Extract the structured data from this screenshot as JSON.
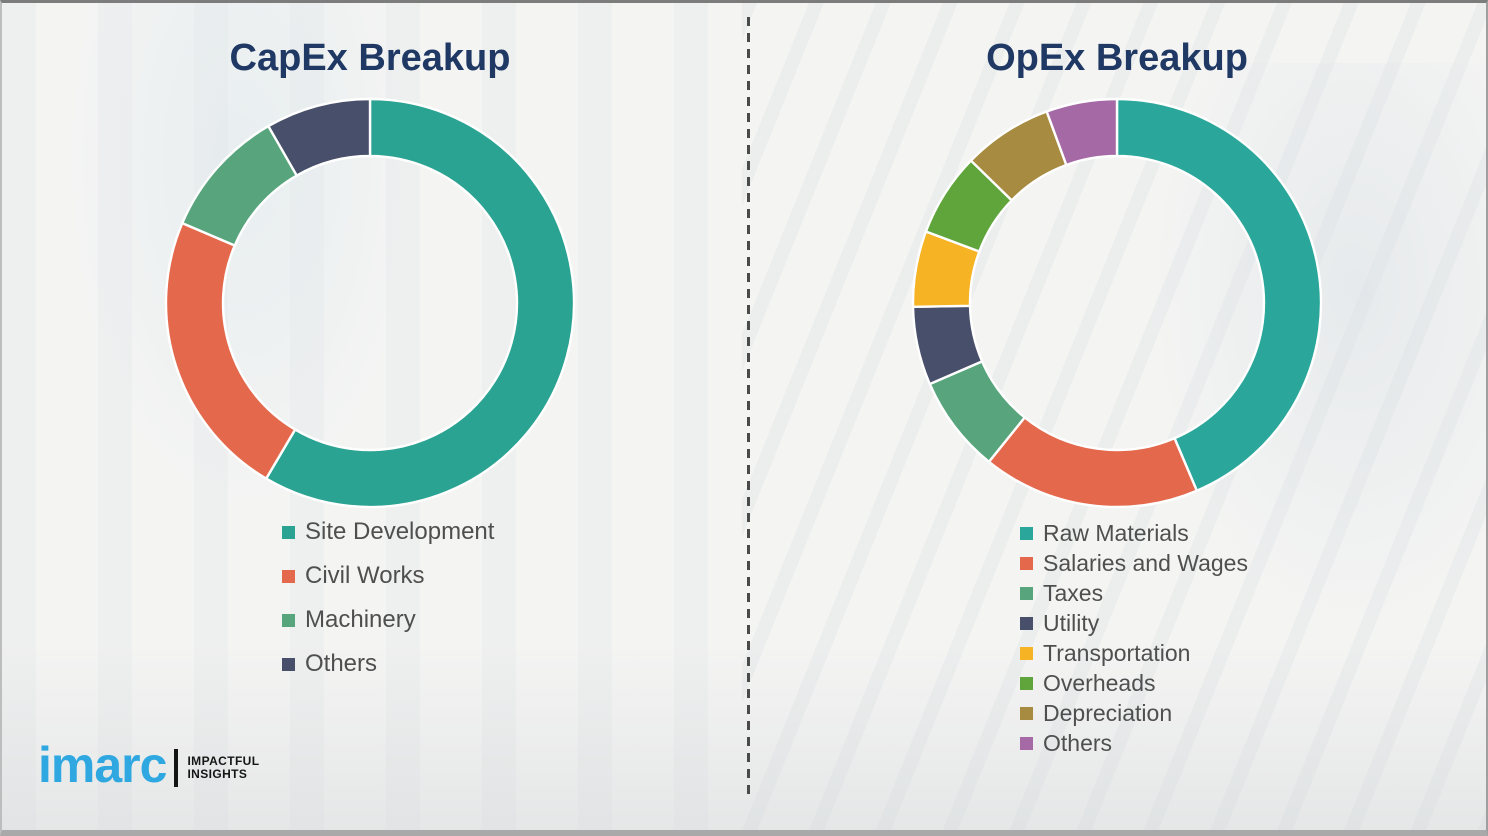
{
  "page": {
    "background_color": "#f4f4f3",
    "divider_color": "#4a4a4a",
    "title_color": "#1f3864",
    "legend_text_color": "#4f4f4f"
  },
  "branding": {
    "logo_text": "imarc",
    "tagline_line1": "IMPACTFUL",
    "tagline_line2": "INSIGHTS",
    "logo_color": "#2fa8e1"
  },
  "chart_data": [
    {
      "type": "pie",
      "subtype": "donut",
      "title": "CapEx Breakup",
      "unit": "percent-estimated-from-arc-angles",
      "start_angle_deg": 0,
      "direction": "clockwise",
      "legend_position": "below-left",
      "segments": [
        {
          "label": "Site Development",
          "value": 58.5,
          "color": "#2ba392"
        },
        {
          "label": "Civil Works",
          "value": 22.9,
          "color": "#e4684b"
        },
        {
          "label": "Machinery",
          "value": 10.3,
          "color": "#58a57d"
        },
        {
          "label": "Others",
          "value": 8.3,
          "color": "#484f6a"
        }
      ]
    },
    {
      "type": "pie",
      "subtype": "donut",
      "title": "OpEx Breakup",
      "unit": "percent-estimated-from-arc-angles",
      "start_angle_deg": 0,
      "direction": "clockwise",
      "legend_position": "below-left",
      "segments": [
        {
          "label": "Raw Materials",
          "value": 43.6,
          "color": "#2aa79a"
        },
        {
          "label": "Salaries and Wages",
          "value": 17.2,
          "color": "#e4684b"
        },
        {
          "label": "Taxes",
          "value": 7.7,
          "color": "#58a57d"
        },
        {
          "label": "Utility",
          "value": 6.2,
          "color": "#484f6a"
        },
        {
          "label": "Transportation",
          "value": 6.0,
          "color": "#f6b425"
        },
        {
          "label": "Overheads",
          "value": 6.6,
          "color": "#5fa53c"
        },
        {
          "label": "Depreciation",
          "value": 7.1,
          "color": "#a78b41"
        },
        {
          "label": "Others",
          "value": 5.6,
          "color": "#a56aa5"
        }
      ]
    }
  ]
}
